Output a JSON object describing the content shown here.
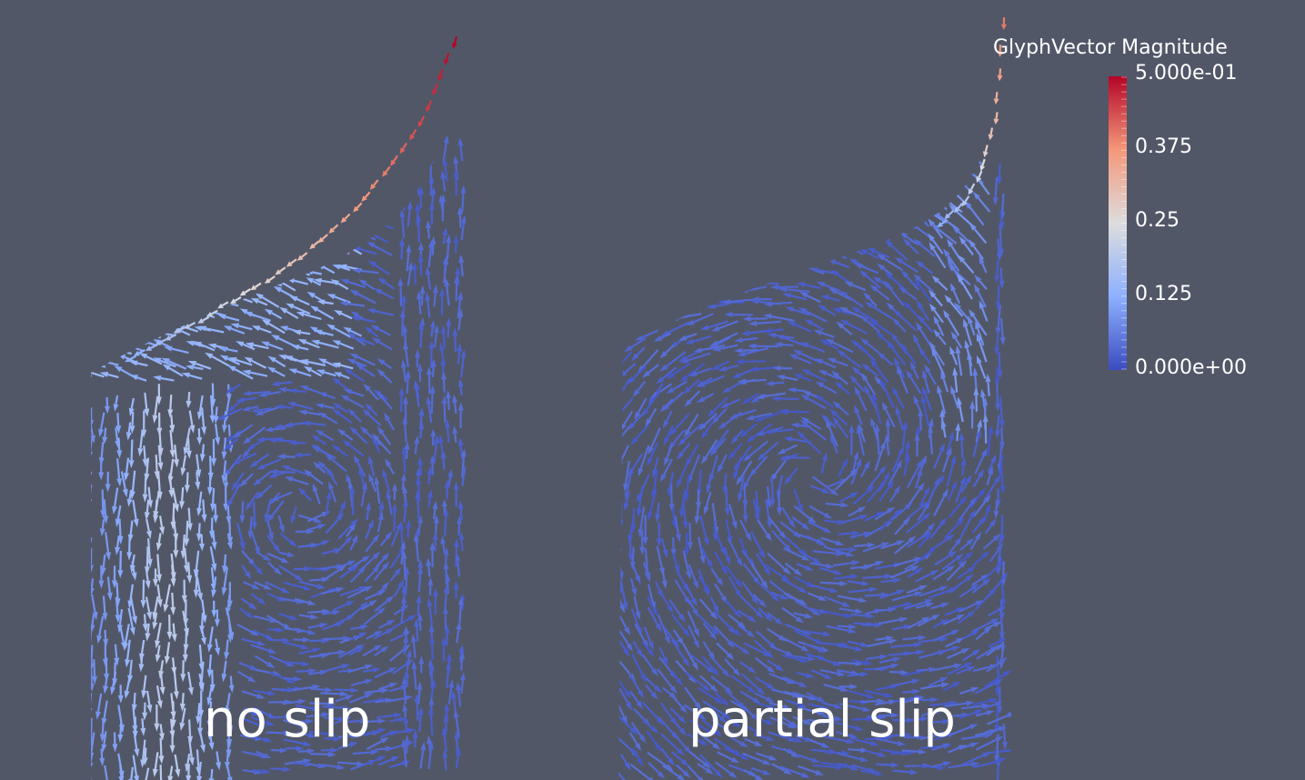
{
  "panels": [
    {
      "id": "left",
      "label": "no slip"
    },
    {
      "id": "right",
      "label": "partial slip"
    }
  ],
  "legend": {
    "title": "GlyphVector Magnitude",
    "min": 0,
    "max": 0.5,
    "tick_labels": [
      "5.000e-01",
      "0.375",
      "0.25",
      "0.125",
      "0.000e+00"
    ],
    "colormap": [
      "#3b4cc0",
      "#8db0fe",
      "#dddddd",
      "#f4987a",
      "#b40426"
    ]
  },
  "colors": {
    "background": "#525768"
  }
}
